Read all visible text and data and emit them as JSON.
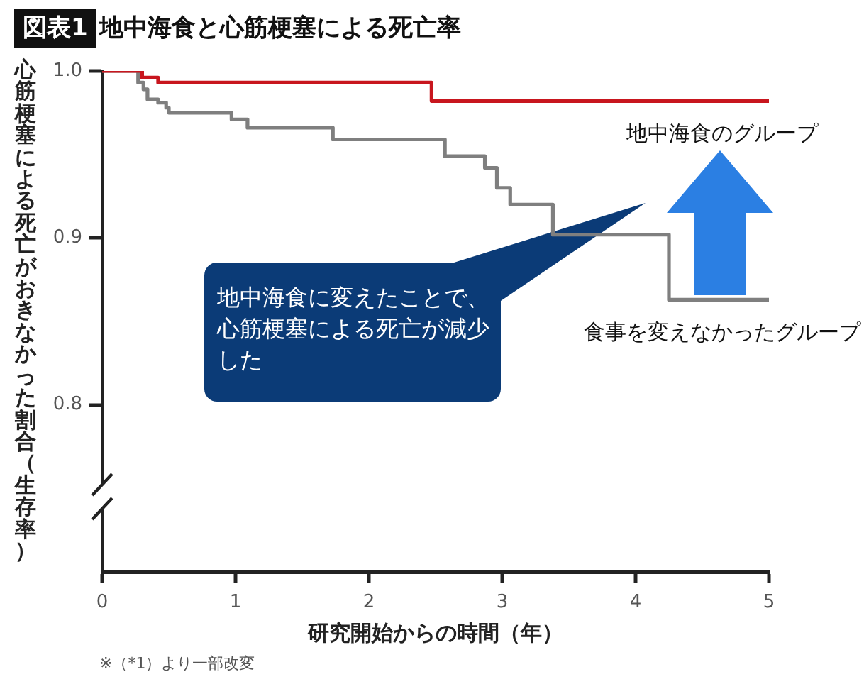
{
  "chart_data": {
    "type": "step",
    "title": "地中海食と心筋梗塞による死亡率",
    "xlabel": "研究開始からの時間（年）",
    "ylabel": "心筋梗塞による死亡がおきなかった割合（生存率）",
    "annotations": [
      "図表1",
      "地中海食に変えたことで、心筋梗塞による死亡が減少した",
      "※（*1）より一部改変"
    ],
    "series": [
      {
        "name": "地中海食のグループ",
        "color": "#c8161e",
        "x": [
          0,
          0.3,
          0.42,
          2.47,
          5
        ],
        "values": [
          1,
          0.996,
          0.993,
          0.982,
          0.982
        ]
      },
      {
        "name": "食事を変えなかったグループ",
        "color": "#7f7f7f",
        "x": [
          0,
          0.27,
          0.31,
          0.34,
          0.42,
          0.48,
          0.5,
          0.97,
          1.09,
          1.73,
          2.57,
          2.87,
          2.96,
          3.06,
          3.38,
          4.25,
          5
        ],
        "values": [
          1,
          0.993,
          0.989,
          0.983,
          0.981,
          0.978,
          0.975,
          0.971,
          0.966,
          0.959,
          0.949,
          0.942,
          0.93,
          0.92,
          0.902,
          0.863,
          0.863
        ]
      }
    ],
    "xlim": [
      0,
      5
    ],
    "xticks": [
      0,
      1,
      2,
      3,
      4,
      5
    ],
    "ylim": [
      0.7,
      1
    ],
    "yticks": [
      {
        "value": 0.8,
        "label": "0.8"
      },
      0.9,
      {
        "value": 1,
        "label": "1.0"
      }
    ],
    "grid": false,
    "legend": false,
    "marker": "none",
    "line_style": "solid"
  }
}
